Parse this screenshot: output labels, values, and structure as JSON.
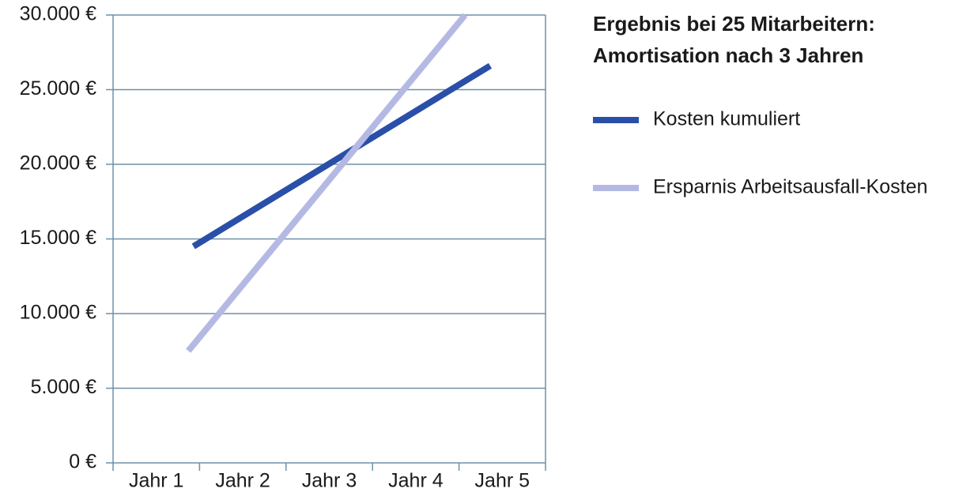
{
  "chart_data": {
    "type": "line",
    "title": [
      "Ergebnis bei 25 Mitarbeitern:",
      "Amortisation nach 3 Jahren"
    ],
    "categories": [
      "Jahr 1",
      "Jahr 2",
      "Jahr 3",
      "Jahr 4",
      "Jahr 5"
    ],
    "xlim": [
      0.5,
      5.5
    ],
    "series": [
      {
        "name": "Kosten kumuliert",
        "color": "#2a4fa8",
        "x": [
          1.43,
          4.86
        ],
        "values": [
          14500,
          26600
        ]
      },
      {
        "name": "Ersparnis Arbeitsausfall-Kosten",
        "color": "#b4b9e4",
        "x": [
          1.37,
          4.57
        ],
        "values": [
          7500,
          30000
        ]
      }
    ],
    "ylim": [
      0,
      30000
    ],
    "yticks": [
      {
        "value": 0,
        "label": "0 €"
      },
      {
        "value": 5000,
        "label": "5.000 €"
      },
      {
        "value": 10000,
        "label": "10.000 €"
      },
      {
        "value": 15000,
        "label": "15.000 €"
      },
      {
        "value": 20000,
        "label": "20.000 €"
      },
      {
        "value": 25000,
        "label": "25.000 €"
      },
      {
        "value": 30000,
        "label": "30.000 €"
      }
    ],
    "grid": true
  }
}
